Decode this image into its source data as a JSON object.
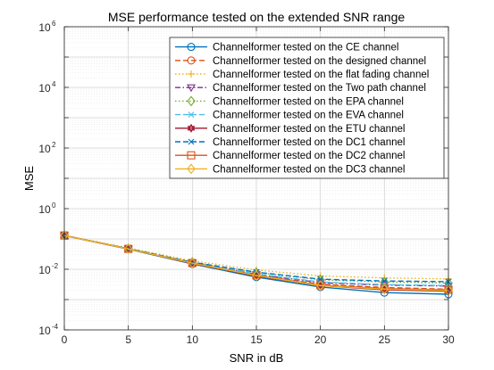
{
  "chart_data": {
    "type": "line",
    "title": "MSE performance tested on the extended SNR range",
    "xlabel": "SNR in dB",
    "ylabel": "MSE",
    "x": [
      0,
      5,
      10,
      15,
      20,
      25,
      30
    ],
    "xlim": [
      0,
      30
    ],
    "xticks": [
      "0",
      "5",
      "10",
      "15",
      "20",
      "25",
      "30"
    ],
    "ylim": [
      0.0001,
      1000000
    ],
    "yscale": "log",
    "yticks": [
      {
        "base": "10",
        "exp": "-4"
      },
      {
        "base": "10",
        "exp": "-2"
      },
      {
        "base": "10",
        "exp": "0"
      },
      {
        "base": "10",
        "exp": "2"
      },
      {
        "base": "10",
        "exp": "4"
      },
      {
        "base": "10",
        "exp": "6"
      }
    ],
    "grid": true,
    "legend_position": "top-right",
    "series": [
      {
        "name": "Channelformer tested on the CE channel",
        "color": "#0072BD",
        "dash": "solid",
        "marker": "circle",
        "values": [
          0.13,
          0.046,
          0.015,
          0.0055,
          0.0026,
          0.0017,
          0.0015
        ]
      },
      {
        "name": "Channelformer tested on the designed channel",
        "color": "#D95319",
        "dash": "dashed",
        "marker": "circle",
        "values": [
          0.13,
          0.047,
          0.016,
          0.0065,
          0.0032,
          0.0025,
          0.0022
        ]
      },
      {
        "name": "Channelformer tested on the flat fading channel",
        "color": "#EDB120",
        "dash": "dotted",
        "marker": "plus",
        "values": [
          0.13,
          0.05,
          0.019,
          0.0095,
          0.006,
          0.0052,
          0.0048
        ]
      },
      {
        "name": "Channelformer tested on the Two path channel",
        "color": "#7E2F8E",
        "dash": "dashdot",
        "marker": "triangle-down",
        "values": [
          0.13,
          0.047,
          0.016,
          0.0068,
          0.0036,
          0.003,
          0.0028
        ]
      },
      {
        "name": "Channelformer tested on the EPA channel",
        "color": "#77AC30",
        "dash": "dotted",
        "marker": "diamond",
        "values": [
          0.13,
          0.048,
          0.017,
          0.0078,
          0.0045,
          0.0038,
          0.0035
        ]
      },
      {
        "name": "Channelformer tested on the EVA channel",
        "color": "#4DBEEE",
        "dash": "dashed",
        "marker": "asterisk",
        "values": [
          0.13,
          0.047,
          0.016,
          0.007,
          0.0038,
          0.0031,
          0.0029
        ]
      },
      {
        "name": "Channelformer tested on the ETU channel",
        "color": "#A2142F",
        "dash": "solid",
        "marker": "hexagram",
        "values": [
          0.13,
          0.047,
          0.0155,
          0.006,
          0.0029,
          0.0021,
          0.0019
        ]
      },
      {
        "name": "Channelformer tested on the DC1 channel",
        "color": "#0072BD",
        "dash": "dashed",
        "marker": "x",
        "values": [
          0.13,
          0.048,
          0.017,
          0.008,
          0.0047,
          0.0041,
          0.0039
        ]
      },
      {
        "name": "Channelformer tested on the DC2 channel",
        "color": "#D95319",
        "dash": "solid",
        "marker": "square",
        "values": [
          0.13,
          0.047,
          0.016,
          0.0063,
          0.003,
          0.0023,
          0.0021
        ]
      },
      {
        "name": "Channelformer tested on the DC3 channel",
        "color": "#EDB120",
        "dash": "solid",
        "marker": "diamond",
        "values": [
          0.13,
          0.047,
          0.0158,
          0.0062,
          0.0029,
          0.0022,
          0.002
        ]
      }
    ]
  }
}
